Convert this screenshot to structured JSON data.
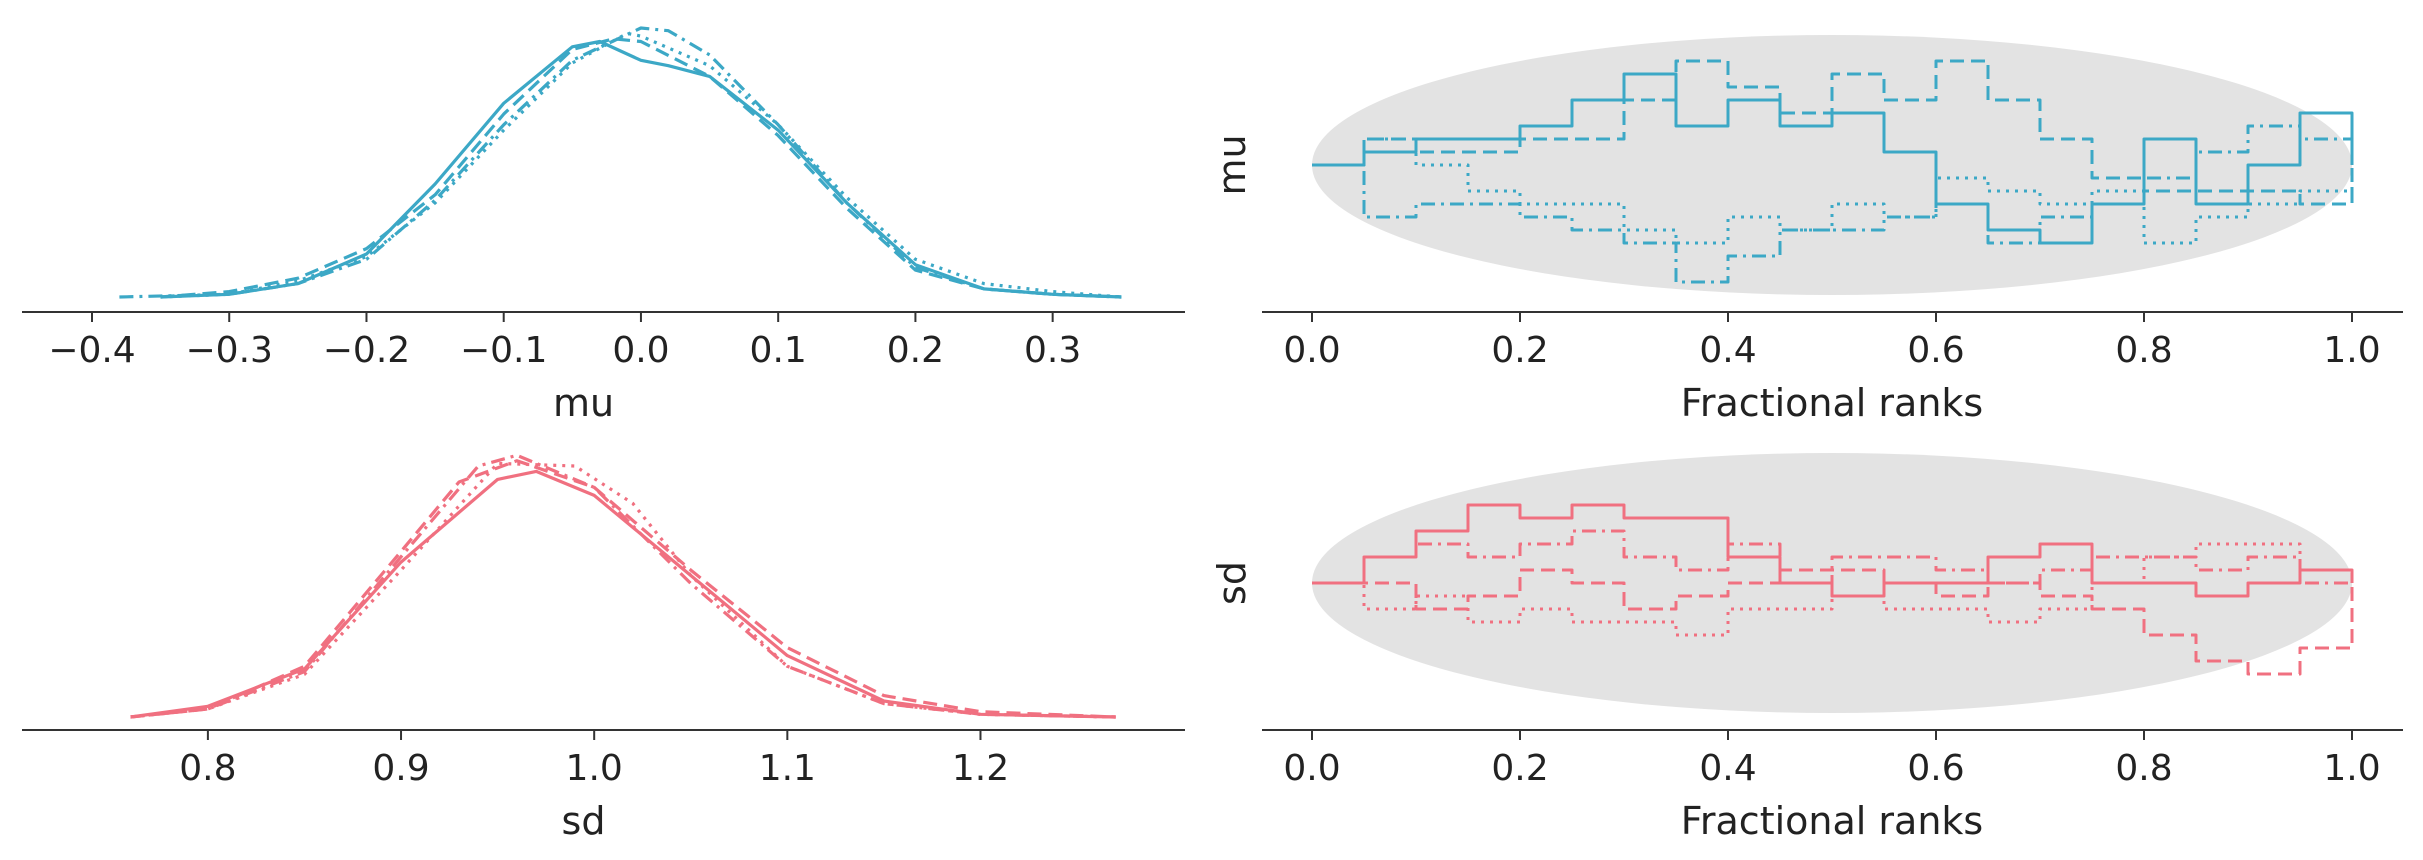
{
  "colors": {
    "mu": "#3ca8c6",
    "sd": "#f07080",
    "envelope": "#e3e3e3",
    "axis": "#333333",
    "text": "#222222"
  },
  "chart_data": [
    {
      "type": "line",
      "subtype": "kde",
      "xlabel": "mu",
      "xlim": [
        -0.4,
        0.36
      ],
      "xticks": [
        "−0.4",
        "−0.3",
        "−0.2",
        "−0.1",
        "0.0",
        "0.1",
        "0.2",
        "0.3"
      ],
      "xtick_values": [
        -0.4,
        -0.3,
        -0.2,
        -0.1,
        0.0,
        0.1,
        0.2,
        0.3
      ],
      "y_axis_visible": false,
      "series": [
        {
          "line_style": "solid",
          "x": [
            -0.35,
            -0.3,
            -0.25,
            -0.2,
            -0.15,
            -0.1,
            -0.05,
            -0.03,
            0.0,
            0.02,
            0.05,
            0.1,
            0.15,
            0.2,
            0.25,
            0.3,
            0.35
          ],
          "y": [
            0.0,
            0.01,
            0.05,
            0.16,
            0.42,
            0.72,
            0.93,
            0.95,
            0.88,
            0.86,
            0.82,
            0.62,
            0.35,
            0.12,
            0.03,
            0.01,
            0.0
          ]
        },
        {
          "line_style": "dashed",
          "x": [
            -0.35,
            -0.3,
            -0.25,
            -0.2,
            -0.15,
            -0.1,
            -0.05,
            -0.02,
            0.0,
            0.05,
            0.1,
            0.15,
            0.2,
            0.25,
            0.3,
            0.35
          ],
          "y": [
            0.0,
            0.02,
            0.07,
            0.18,
            0.38,
            0.68,
            0.92,
            0.96,
            0.95,
            0.82,
            0.6,
            0.33,
            0.1,
            0.03,
            0.01,
            0.0
          ]
        },
        {
          "line_style": "dashdot",
          "x": [
            -0.38,
            -0.3,
            -0.25,
            -0.2,
            -0.15,
            -0.1,
            -0.05,
            0.0,
            0.02,
            0.05,
            0.1,
            0.15,
            0.2,
            0.25,
            0.3,
            0.35
          ],
          "y": [
            0.0,
            0.01,
            0.05,
            0.14,
            0.36,
            0.64,
            0.88,
            1.0,
            0.99,
            0.9,
            0.64,
            0.35,
            0.11,
            0.03,
            0.01,
            0.0
          ]
        },
        {
          "line_style": "dotted",
          "x": [
            -0.35,
            -0.3,
            -0.25,
            -0.2,
            -0.15,
            -0.1,
            -0.05,
            -0.01,
            0.0,
            0.05,
            0.1,
            0.15,
            0.2,
            0.25,
            0.3,
            0.35
          ],
          "y": [
            0.0,
            0.01,
            0.06,
            0.15,
            0.35,
            0.62,
            0.87,
            0.98,
            0.97,
            0.86,
            0.64,
            0.37,
            0.14,
            0.05,
            0.02,
            0.0
          ]
        }
      ]
    },
    {
      "type": "line",
      "subtype": "rank-ecdf",
      "ylabel": "mu",
      "xlabel": "Fractional ranks",
      "xlim": [
        0.0,
        1.0
      ],
      "xticks": [
        "0.0",
        "0.2",
        "0.4",
        "0.6",
        "0.8",
        "1.0"
      ],
      "xtick_values": [
        0.0,
        0.2,
        0.4,
        0.6,
        0.8,
        1.0
      ],
      "envelope": "shaded simultaneous confidence band",
      "series": [
        {
          "line_style": "solid",
          "x": [
            0.0,
            0.05,
            0.1,
            0.2,
            0.25,
            0.3,
            0.35,
            0.4,
            0.45,
            0.5,
            0.55,
            0.6,
            0.65,
            0.7,
            0.75,
            0.8,
            0.85,
            0.9,
            0.95,
            1.0
          ],
          "y": [
            0.0,
            0.01,
            0.02,
            0.03,
            0.05,
            0.07,
            0.03,
            0.05,
            0.03,
            0.04,
            0.01,
            -0.03,
            -0.05,
            -0.06,
            -0.03,
            0.02,
            -0.03,
            0.0,
            0.04,
            0.0
          ]
        },
        {
          "line_style": "dashed",
          "x": [
            0.0,
            0.05,
            0.1,
            0.2,
            0.3,
            0.35,
            0.4,
            0.45,
            0.5,
            0.55,
            0.6,
            0.65,
            0.7,
            0.75,
            0.8,
            0.85,
            0.9,
            0.95,
            1.0
          ],
          "y": [
            0.0,
            0.02,
            0.01,
            0.02,
            0.05,
            0.08,
            0.06,
            0.04,
            0.07,
            0.05,
            0.08,
            0.05,
            0.02,
            -0.01,
            -0.02,
            -0.02,
            -0.02,
            -0.03,
            0.0
          ]
        },
        {
          "line_style": "dotted",
          "x": [
            0.0,
            0.05,
            0.1,
            0.15,
            0.2,
            0.3,
            0.35,
            0.4,
            0.45,
            0.5,
            0.55,
            0.6,
            0.65,
            0.7,
            0.75,
            0.8,
            0.85,
            0.9,
            0.95,
            1.0
          ],
          "y": [
            0.0,
            0.02,
            0.0,
            -0.02,
            -0.03,
            -0.05,
            -0.06,
            -0.04,
            -0.05,
            -0.03,
            -0.04,
            -0.01,
            -0.02,
            -0.03,
            -0.02,
            -0.06,
            -0.04,
            -0.03,
            -0.02,
            0.0
          ]
        },
        {
          "line_style": "dashdot",
          "x": [
            0.0,
            0.05,
            0.1,
            0.15,
            0.2,
            0.25,
            0.3,
            0.35,
            0.4,
            0.45,
            0.5,
            0.55,
            0.6,
            0.65,
            0.7,
            0.75,
            0.8,
            0.85,
            0.9,
            0.95,
            1.0
          ],
          "y": [
            0.0,
            -0.04,
            -0.03,
            -0.03,
            -0.04,
            -0.05,
            -0.06,
            -0.09,
            -0.07,
            -0.05,
            -0.05,
            -0.04,
            -0.03,
            -0.06,
            -0.04,
            -0.03,
            -0.01,
            0.01,
            0.03,
            0.02,
            0.0
          ]
        }
      ]
    },
    {
      "type": "line",
      "subtype": "kde",
      "xlabel": "sd",
      "xlim": [
        0.74,
        1.28
      ],
      "xticks": [
        "0.8",
        "0.9",
        "1.0",
        "1.1",
        "1.2"
      ],
      "xtick_values": [
        0.8,
        0.9,
        1.0,
        1.1,
        1.2
      ],
      "y_axis_visible": false,
      "series": [
        {
          "line_style": "solid",
          "x": [
            0.76,
            0.8,
            0.85,
            0.9,
            0.95,
            0.97,
            1.0,
            1.05,
            1.1,
            1.15,
            1.2,
            1.27
          ],
          "y": [
            0.0,
            0.04,
            0.18,
            0.58,
            0.89,
            0.92,
            0.83,
            0.53,
            0.23,
            0.06,
            0.01,
            0.0
          ]
        },
        {
          "line_style": "dashed",
          "x": [
            0.76,
            0.8,
            0.85,
            0.9,
            0.93,
            0.96,
            1.0,
            1.05,
            1.1,
            1.15,
            1.2,
            1.27
          ],
          "y": [
            0.0,
            0.03,
            0.19,
            0.62,
            0.88,
            0.96,
            0.86,
            0.55,
            0.26,
            0.08,
            0.02,
            0.0
          ]
        },
        {
          "line_style": "dashdot",
          "x": [
            0.76,
            0.8,
            0.85,
            0.9,
            0.94,
            0.96,
            1.0,
            1.05,
            1.1,
            1.15,
            1.2,
            1.27
          ],
          "y": [
            0.0,
            0.03,
            0.17,
            0.6,
            0.94,
            0.98,
            0.86,
            0.5,
            0.19,
            0.05,
            0.01,
            0.0
          ]
        },
        {
          "line_style": "dotted",
          "x": [
            0.76,
            0.8,
            0.85,
            0.9,
            0.95,
            0.99,
            1.02,
            1.05,
            1.1,
            1.15,
            1.2,
            1.27
          ],
          "y": [
            0.0,
            0.03,
            0.16,
            0.55,
            0.95,
            0.94,
            0.8,
            0.53,
            0.19,
            0.05,
            0.01,
            0.0
          ]
        }
      ]
    },
    {
      "type": "line",
      "subtype": "rank-ecdf",
      "ylabel": "sd",
      "xlabel": "Fractional ranks",
      "xlim": [
        0.0,
        1.0
      ],
      "xticks": [
        "0.0",
        "0.2",
        "0.4",
        "0.6",
        "0.8",
        "1.0"
      ],
      "xtick_values": [
        0.0,
        0.2,
        0.4,
        0.6,
        0.8,
        1.0
      ],
      "envelope": "shaded simultaneous confidence band",
      "series": [
        {
          "line_style": "solid",
          "x": [
            0.0,
            0.05,
            0.1,
            0.15,
            0.2,
            0.25,
            0.3,
            0.35,
            0.4,
            0.45,
            0.5,
            0.55,
            0.6,
            0.65,
            0.7,
            0.75,
            0.8,
            0.85,
            0.9,
            0.95,
            1.0
          ],
          "y": [
            0.0,
            0.02,
            0.04,
            0.06,
            0.05,
            0.06,
            0.05,
            0.05,
            0.02,
            0.0,
            -0.01,
            0.0,
            0.0,
            0.02,
            0.03,
            0.0,
            0.0,
            -0.01,
            0.0,
            0.01,
            0.0
          ]
        },
        {
          "line_style": "dashed",
          "x": [
            0.0,
            0.05,
            0.1,
            0.15,
            0.2,
            0.25,
            0.3,
            0.35,
            0.4,
            0.45,
            0.5,
            0.55,
            0.6,
            0.65,
            0.7,
            0.75,
            0.8,
            0.85,
            0.9,
            0.95,
            1.0
          ],
          "y": [
            0.0,
            0.0,
            -0.02,
            -0.01,
            0.01,
            0.0,
            -0.02,
            -0.01,
            0.0,
            0.01,
            0.01,
            0.0,
            -0.01,
            0.0,
            -0.01,
            -0.02,
            -0.04,
            -0.06,
            -0.07,
            -0.05,
            0.0
          ]
        },
        {
          "line_style": "dotted",
          "x": [
            0.0,
            0.05,
            0.1,
            0.15,
            0.2,
            0.25,
            0.3,
            0.35,
            0.4,
            0.45,
            0.5,
            0.55,
            0.6,
            0.65,
            0.7,
            0.75,
            0.8,
            0.85,
            0.9,
            0.95,
            1.0
          ],
          "y": [
            0.0,
            -0.02,
            -0.01,
            -0.03,
            -0.02,
            -0.03,
            -0.03,
            -0.04,
            -0.02,
            -0.02,
            -0.01,
            -0.02,
            -0.02,
            -0.03,
            -0.02,
            0.0,
            0.02,
            0.03,
            0.03,
            0.01,
            0.0
          ]
        },
        {
          "line_style": "dashdot",
          "x": [
            0.0,
            0.05,
            0.1,
            0.15,
            0.2,
            0.25,
            0.3,
            0.35,
            0.4,
            0.45,
            0.5,
            0.55,
            0.6,
            0.65,
            0.7,
            0.75,
            0.8,
            0.85,
            0.9,
            0.95,
            1.0
          ],
          "y": [
            0.0,
            0.02,
            0.03,
            0.02,
            0.03,
            0.04,
            0.02,
            0.01,
            0.03,
            0.0,
            0.02,
            0.02,
            0.01,
            0.0,
            0.01,
            0.02,
            0.02,
            0.01,
            0.02,
            0.0,
            0.0
          ]
        }
      ]
    }
  ]
}
